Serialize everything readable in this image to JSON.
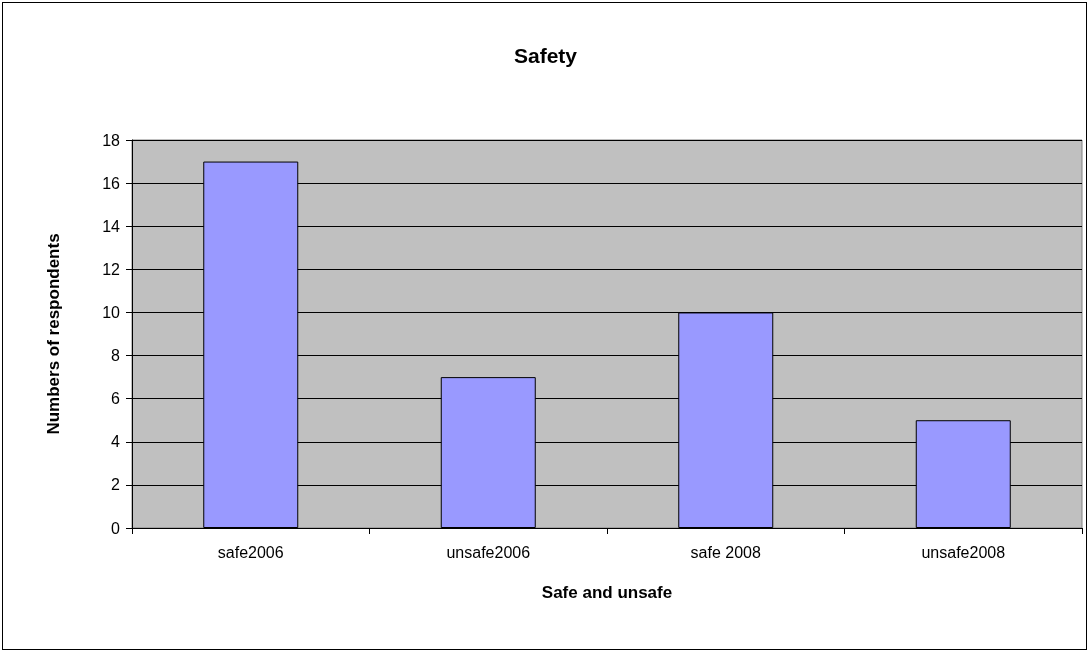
{
  "chart_data": {
    "type": "bar",
    "title": "Safety",
    "xlabel": "Safe and unsafe",
    "ylabel": "Numbers of respondents",
    "categories": [
      "safe2006",
      "unsafe2006",
      "safe 2008",
      "unsafe2008"
    ],
    "values": [
      17,
      7,
      10,
      5
    ],
    "color": "#9999ff",
    "ylim": [
      0,
      18
    ],
    "yticks": [
      0,
      2,
      4,
      6,
      8,
      10,
      12,
      14,
      16,
      18
    ],
    "grid": "y"
  }
}
